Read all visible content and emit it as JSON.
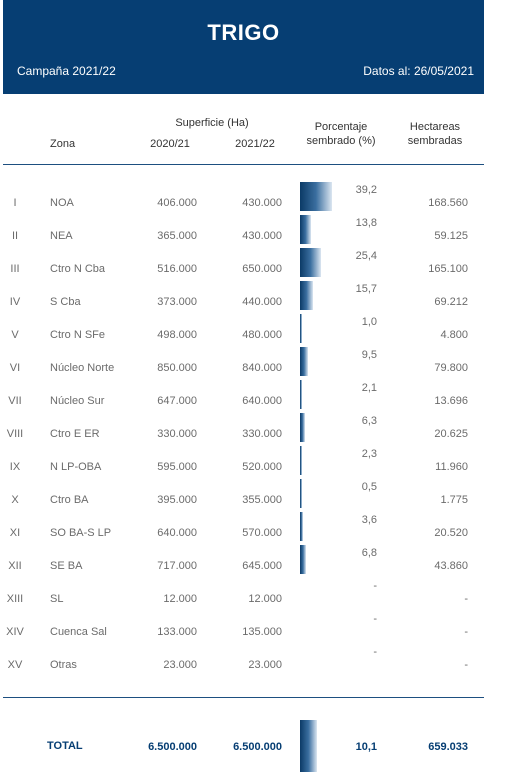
{
  "header": {
    "title": "TRIGO",
    "campaign": "Campaña 2021/22",
    "date": "Datos al: 26/05/2021"
  },
  "columns": {
    "zona": "Zona",
    "superficie": "Superficie (Ha)",
    "y1": "2020/21",
    "y2": "2021/22",
    "pct_line1": "Porcentaje",
    "pct_line2": "sembrado (%)",
    "hect_line1": "Hectareas",
    "hect_line2": "sembradas"
  },
  "rows": [
    {
      "roman": "I",
      "zona": "NOA",
      "v1": "406.000",
      "v2": "430.000",
      "pct": "39,2",
      "pct_value": 39.2,
      "hect": "168.560"
    },
    {
      "roman": "II",
      "zona": "NEA",
      "v1": "365.000",
      "v2": "430.000",
      "pct": "13,8",
      "pct_value": 13.8,
      "hect": "59.125"
    },
    {
      "roman": "III",
      "zona": "Ctro N Cba",
      "v1": "516.000",
      "v2": "650.000",
      "pct": "25,4",
      "pct_value": 25.4,
      "hect": "165.100"
    },
    {
      "roman": "IV",
      "zona": "S Cba",
      "v1": "373.000",
      "v2": "440.000",
      "pct": "15,7",
      "pct_value": 15.7,
      "hect": "69.212"
    },
    {
      "roman": "V",
      "zona": "Ctro N SFe",
      "v1": "498.000",
      "v2": "480.000",
      "pct": "1,0",
      "pct_value": 1.0,
      "hect": "4.800"
    },
    {
      "roman": "VI",
      "zona": "Núcleo Norte",
      "v1": "850.000",
      "v2": "840.000",
      "pct": "9,5",
      "pct_value": 9.5,
      "hect": "79.800"
    },
    {
      "roman": "VII",
      "zona": "Núcleo Sur",
      "v1": "647.000",
      "v2": "640.000",
      "pct": "2,1",
      "pct_value": 2.1,
      "hect": "13.696"
    },
    {
      "roman": "VIII",
      "zona": "Ctro E ER",
      "v1": "330.000",
      "v2": "330.000",
      "pct": "6,3",
      "pct_value": 6.3,
      "hect": "20.625"
    },
    {
      "roman": "IX",
      "zona": "N LP-OBA",
      "v1": "595.000",
      "v2": "520.000",
      "pct": "2,3",
      "pct_value": 2.3,
      "hect": "11.960"
    },
    {
      "roman": "X",
      "zona": "Ctro BA",
      "v1": "395.000",
      "v2": "355.000",
      "pct": "0,5",
      "pct_value": 0.5,
      "hect": "1.775"
    },
    {
      "roman": "XI",
      "zona": "SO BA-S LP",
      "v1": "640.000",
      "v2": "570.000",
      "pct": "3,6",
      "pct_value": 3.6,
      "hect": "20.520"
    },
    {
      "roman": "XII",
      "zona": "SE BA",
      "v1": "717.000",
      "v2": "645.000",
      "pct": "6,8",
      "pct_value": 6.8,
      "hect": "43.860"
    },
    {
      "roman": "XIII",
      "zona": "SL",
      "v1": "12.000",
      "v2": "12.000",
      "pct": "-",
      "pct_value": 0,
      "hect": "-"
    },
    {
      "roman": "XIV",
      "zona": "Cuenca Sal",
      "v1": "133.000",
      "v2": "135.000",
      "pct": "-",
      "pct_value": 0,
      "hect": "-"
    },
    {
      "roman": "XV",
      "zona": "Otras",
      "v1": "23.000",
      "v2": "23.000",
      "pct": "-",
      "pct_value": 0,
      "hect": "-"
    }
  ],
  "total": {
    "label": "TOTAL",
    "v1": "6.500.000",
    "v2": "6.500.000",
    "pct": "10,1",
    "pct_value": 10.1,
    "hect": "659.033"
  },
  "colors": {
    "banner": "#063e73",
    "bar_dark": "#0b3a66",
    "bar_light": "#dbe6f1"
  }
}
